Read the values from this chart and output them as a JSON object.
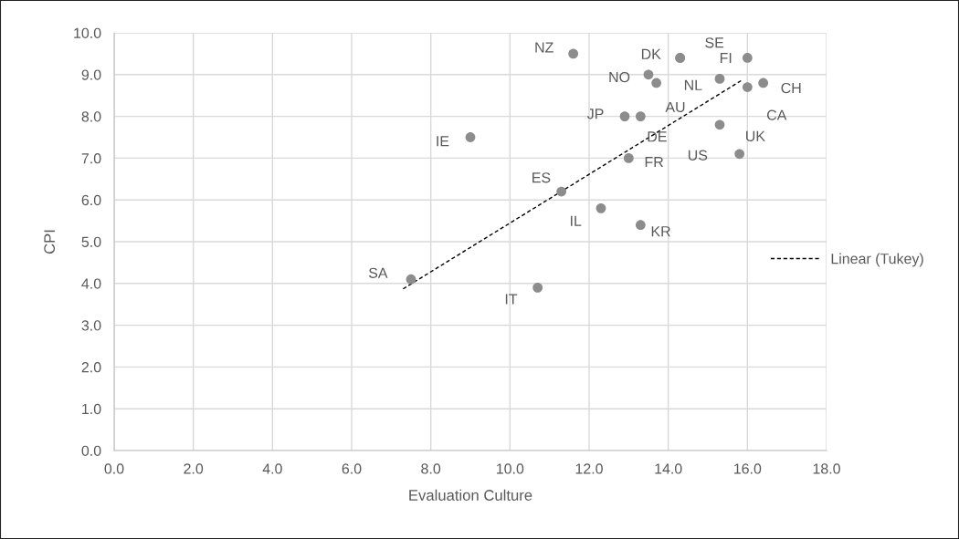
{
  "chart_data": {
    "type": "scatter",
    "xlabel": "Evaluation Culture",
    "ylabel": "CPI",
    "xlim": [
      0,
      18
    ],
    "xticks": [
      {
        "value": 0,
        "label": "0.0"
      },
      {
        "value": 2,
        "label": "2.0"
      },
      {
        "value": 4,
        "label": "4.0"
      },
      {
        "value": 6,
        "label": "6.0"
      },
      {
        "value": 8,
        "label": "8.0"
      },
      {
        "value": 10,
        "label": "10.0"
      },
      {
        "value": 12,
        "label": "12.0"
      },
      {
        "value": 14,
        "label": "14.0"
      },
      {
        "value": 16,
        "label": "16.0"
      },
      {
        "value": 18,
        "label": "18.0"
      }
    ],
    "ylim": [
      0,
      10
    ],
    "yticks": [
      {
        "value": 0,
        "label": "0.0"
      },
      {
        "value": 1,
        "label": "1.0"
      },
      {
        "value": 2,
        "label": "2.0"
      },
      {
        "value": 3,
        "label": "3.0"
      },
      {
        "value": 4,
        "label": "4.0"
      },
      {
        "value": 5,
        "label": "5.0"
      },
      {
        "value": 6,
        "label": "6.0"
      },
      {
        "value": 7,
        "label": "7.0"
      },
      {
        "value": 8,
        "label": "8.0"
      },
      {
        "value": 9,
        "label": "9.0"
      },
      {
        "value": 10,
        "label": "10.0"
      }
    ],
    "grid": true,
    "legend": "right",
    "marker": "circle",
    "series": [
      {
        "color": "#8c8c8c",
        "x": [
          11.6,
          14.3,
          14.3,
          16.0,
          13.5,
          15.3,
          16.4,
          13.7,
          16.0,
          12.9,
          13.3,
          15.3,
          15.8,
          13.0,
          11.3,
          12.3,
          13.3,
          9.0,
          7.5,
          10.7
        ],
        "values": [
          9.5,
          9.4,
          9.4,
          9.4,
          9.0,
          8.9,
          8.8,
          8.8,
          8.7,
          8.0,
          8.0,
          7.8,
          7.1,
          7.0,
          6.2,
          5.8,
          5.4,
          7.5,
          4.1,
          3.9
        ]
      },
      {
        "type": "line",
        "name": "Linear (Tukey)",
        "color": "#000000",
        "line_style": "dashed",
        "marker": "none",
        "x": [
          7.3,
          15.85
        ],
        "values": [
          3.87,
          8.86
        ]
      }
    ],
    "annotations": [
      {
        "text": "NZ",
        "x": 11.6,
        "y": 9.5
      },
      {
        "text": "DK",
        "x": 14.3,
        "y": 9.4
      },
      {
        "text": "SE",
        "x": 14.3,
        "y": 9.4
      },
      {
        "text": "FI",
        "x": 16.0,
        "y": 9.4
      },
      {
        "text": "NO",
        "x": 13.5,
        "y": 9.0
      },
      {
        "text": "NL",
        "x": 15.3,
        "y": 8.9
      },
      {
        "text": "CH",
        "x": 16.4,
        "y": 8.8
      },
      {
        "text": "AU",
        "x": 13.7,
        "y": 8.8
      },
      {
        "text": "CA",
        "x": 16.0,
        "y": 8.7
      },
      {
        "text": "JP",
        "x": 12.9,
        "y": 8.0
      },
      {
        "text": "DE",
        "x": 13.3,
        "y": 8.0
      },
      {
        "text": "UK",
        "x": 15.3,
        "y": 7.8
      },
      {
        "text": "US",
        "x": 15.8,
        "y": 7.1
      },
      {
        "text": "FR",
        "x": 13.0,
        "y": 7.0
      },
      {
        "text": "ES",
        "x": 11.3,
        "y": 6.2
      },
      {
        "text": "IL",
        "x": 12.3,
        "y": 5.8
      },
      {
        "text": "KR",
        "x": 13.3,
        "y": 5.4
      },
      {
        "text": "IE",
        "x": 9.0,
        "y": 7.5
      },
      {
        "text": "SA",
        "x": 7.5,
        "y": 4.1
      },
      {
        "text": "IT",
        "x": 10.7,
        "y": 3.9
      }
    ]
  }
}
